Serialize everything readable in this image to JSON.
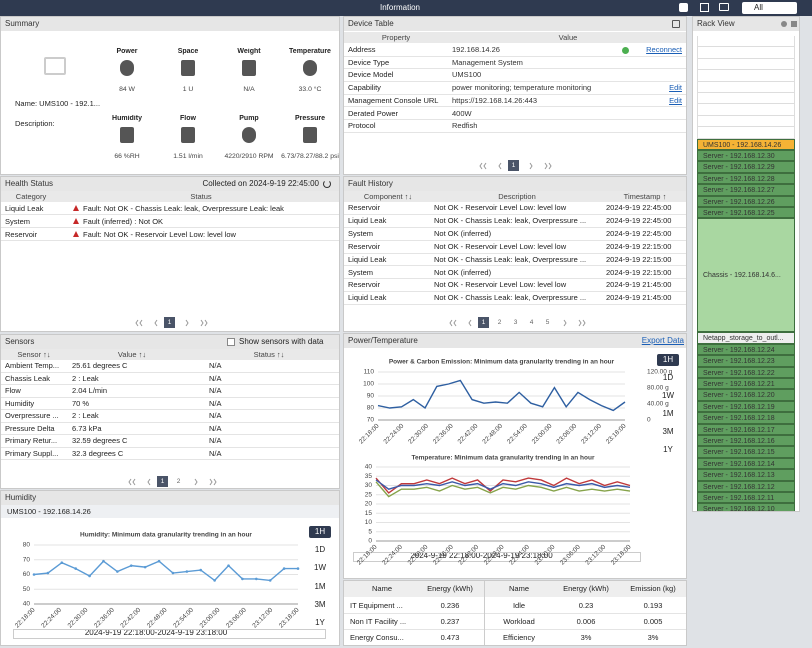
{
  "topbar": {
    "title": "Information",
    "filter": "All"
  },
  "summary": {
    "title": "Summary",
    "name": "Name: UMS100 - 192.1...",
    "description": "Description:",
    "metrics": [
      {
        "label": "Power",
        "value": "84 W"
      },
      {
        "label": "Space",
        "value": "1 U"
      },
      {
        "label": "Weight",
        "value": "N/A"
      },
      {
        "label": "Temperature",
        "value": "33.0 °C"
      },
      {
        "label": "Humidity",
        "value": "66 %RH"
      },
      {
        "label": "Flow",
        "value": "1.51 l/min"
      },
      {
        "label": "Pump",
        "value": "4220/2910 RPM"
      },
      {
        "label": "Pressure",
        "value": "6.73/78.27/88.2 psi"
      }
    ]
  },
  "device_table": {
    "title": "Device Table",
    "headers": [
      "Property",
      "Value"
    ],
    "rows": [
      [
        "Address",
        "192.168.14.26",
        "Reconnect"
      ],
      [
        "Device Type",
        "Management System"
      ],
      [
        "Device Model",
        "UMS100"
      ],
      [
        "Capability",
        "power monitoring; temperature monitoring",
        "Edit"
      ],
      [
        "Management Console URL",
        "https://192.168.14.26:443",
        "Edit"
      ],
      [
        "Derated Power",
        "400W"
      ],
      [
        "Protocol",
        "Redfish"
      ]
    ],
    "pages": [
      1
    ]
  },
  "health_status": {
    "title": "Health Status",
    "collected": "Collected on 2024-9-19 22:45:00",
    "headers": [
      "Category",
      "Status"
    ],
    "rows": [
      [
        "Liquid Leak",
        "Fault: Not OK - Chassis Leak: leak, Overpressure Leak: leak"
      ],
      [
        "System",
        "Fault (inferred) : Not OK"
      ],
      [
        "Reservoir",
        "Fault: Not OK - Reservoir Level Low: level low"
      ]
    ],
    "pages": [
      1
    ]
  },
  "fault_history": {
    "title": "Fault History",
    "headers": [
      "Component ↑↓",
      "Description",
      "Timestamp ↑"
    ],
    "rows": [
      [
        "Reservoir",
        "Not OK - Reservoir Level Low: level low",
        "2024-9-19 22:45:00"
      ],
      [
        "Liquid Leak",
        "Not OK - Chassis Leak: leak, Overpressure ...",
        "2024-9-19 22:45:00"
      ],
      [
        "System",
        "Not OK (inferred)",
        "2024-9-19 22:45:00"
      ],
      [
        "Reservoir",
        "Not OK - Reservoir Level Low: level low",
        "2024-9-19 22:15:00"
      ],
      [
        "Liquid Leak",
        "Not OK - Chassis Leak: leak, Overpressure ...",
        "2024-9-19 22:15:00"
      ],
      [
        "System",
        "Not OK (inferred)",
        "2024-9-19 22:15:00"
      ],
      [
        "Reservoir",
        "Not OK - Reservoir Level Low: level low",
        "2024-9-19 21:45:00"
      ],
      [
        "Liquid Leak",
        "Not OK - Chassis Leak: leak, Overpressure ...",
        "2024-9-19 21:45:00"
      ]
    ],
    "pages": [
      1,
      2,
      3,
      4,
      5
    ]
  },
  "sensors": {
    "title": "Sensors",
    "toggle": "Show sensors with data",
    "headers": [
      "Sensor ↑↓",
      "Value ↑↓",
      "Status ↑↓"
    ],
    "rows": [
      [
        "Ambient Temp...",
        "25.61 degrees C",
        "N/A"
      ],
      [
        "Chassis Leak",
        "2 : Leak",
        "N/A"
      ],
      [
        "Flow",
        "2.04 L/min",
        "N/A"
      ],
      [
        "Humidity",
        "70 %",
        "N/A"
      ],
      [
        "Overpressure ...",
        "2 : Leak",
        "N/A"
      ],
      [
        "Pressure Delta",
        "6.73 kPa",
        "N/A"
      ],
      [
        "Primary Retur...",
        "32.59 degrees C",
        "N/A"
      ],
      [
        "Primary Suppl...",
        "32.3 degrees C",
        "N/A"
      ]
    ],
    "pages": [
      1,
      2
    ]
  },
  "humidity": {
    "title": "Humidity",
    "device": "UMS100 - 192.168.14.26",
    "ranges": [
      "1H",
      "1D",
      "1W",
      "1M",
      "3M",
      "1Y"
    ],
    "period": "2024-9-19 22:18:00-2024-9-19 23:18:00",
    "chart_data": {
      "type": "line",
      "title": "Humidity: Minimum data granularity trending in an hour",
      "x_labels": [
        "22:18:00",
        "22:24:00",
        "22:30:00",
        "22:36:00",
        "22:42:00",
        "22:48:00",
        "22:54:00",
        "23:00:00",
        "23:06:00",
        "23:12:00",
        "23:18:00"
      ],
      "ylim": [
        40,
        80
      ],
      "yticks": [
        40,
        50,
        60,
        70,
        80
      ],
      "series": [
        {
          "color": "#5b9bd5",
          "values": [
            60,
            61,
            68,
            64,
            59,
            69,
            62,
            66,
            65,
            69,
            61,
            62,
            63,
            56,
            66,
            57,
            57,
            56,
            64,
            64
          ]
        }
      ]
    }
  },
  "power_temperature": {
    "title": "Power/Temperature",
    "export": "Export Data",
    "ranges": [
      "1H",
      "1D",
      "1W",
      "1M",
      "3M",
      "1Y"
    ],
    "period": "2024-9-19 22:18:00-2024-9-19 23:18:00",
    "chart_data": [
      {
        "type": "line",
        "title": "Power & Carbon Emission: Minimum data granularity trending in an hour",
        "x_labels": [
          "22:18:00",
          "22:24:00",
          "22:30:00",
          "22:36:00",
          "22:42:00",
          "22:48:00",
          "22:54:00",
          "23:00:00",
          "23:06:00",
          "23:12:00",
          "23:18:00"
        ],
        "ylim": [
          70,
          110
        ],
        "yticks": [
          70,
          80,
          90,
          100,
          110
        ],
        "y2lim": [
          0,
          120
        ],
        "y2ticks": [
          0,
          {
            "value": 40,
            "label": "40.00 g"
          },
          {
            "value": 80,
            "label": "80.00 g"
          },
          {
            "value": 120,
            "label": "120.00 g"
          }
        ],
        "series": [
          {
            "color": "#2e5fa1",
            "values": [
              82,
              80,
              81,
              87,
              80,
              98,
              100,
              103,
              87,
              84,
              85,
              84,
              93,
              84,
              81,
              97,
              81,
              93,
              87,
              82,
              78,
              85
            ]
          }
        ]
      },
      {
        "type": "line",
        "title": "Temperature: Minimum data granularity trending in an hour",
        "x_labels": [
          "22:18:00",
          "22:24:00",
          "22:30:00",
          "22:36:00",
          "22:42:00",
          "22:48:00",
          "22:54:00",
          "23:00:00",
          "23:06:00",
          "23:12:00",
          "23:18:00"
        ],
        "ylim": [
          0,
          40
        ],
        "yticks": [
          0,
          5,
          10,
          15,
          20,
          25,
          30,
          35,
          40
        ],
        "series": [
          {
            "color": "#c0393b",
            "values": [
              34,
              26,
              31,
              31,
              33,
              31,
              34,
              31,
              33,
              27,
              33,
              32,
              34,
              33,
              30,
              34,
              31,
              33,
              30,
              32,
              30
            ]
          },
          {
            "color": "#3c5aa8",
            "values": [
              33,
              28,
              30,
              30,
              31,
              30,
              32,
              30,
              31,
              28,
              31,
              30,
              32,
              31,
              29,
              31,
              30,
              31,
              29,
              30,
              29
            ]
          },
          {
            "color": "#86a34a",
            "values": [
              32,
              24,
              28,
              28,
              29,
              27,
              30,
              28,
              29,
              26,
              29,
              28,
              30,
              29,
              27,
              29,
              27,
              28,
              27,
              28,
              27
            ]
          }
        ]
      }
    ],
    "energy_table": {
      "headers": [
        "Name",
        "Energy (kWh)",
        "Name",
        "Energy (kWh)",
        "Emission (kg)"
      ],
      "rows": [
        [
          "IT Equipment ...",
          "0.236",
          "Idle",
          "0.23",
          "0.193"
        ],
        [
          "Non IT Facility ...",
          "0.237",
          "Workload",
          "0.006",
          "0.005"
        ],
        [
          "Energy Consu...",
          "0.473",
          "Efficiency",
          "3%",
          "3%"
        ]
      ]
    }
  },
  "rack_view": {
    "title": "Rack View",
    "items": [
      {
        "label": "UMS100 - 192.168.14.26",
        "color": "#f5b335"
      },
      {
        "label": "Server - 192.168.12.30",
        "color": "#5f9e5f"
      },
      {
        "label": "Server - 192.168.12.29",
        "color": "#5f9e5f"
      },
      {
        "label": "Server - 192.168.12.28",
        "color": "#5f9e5f"
      },
      {
        "label": "Server - 192.168.12.27",
        "color": "#5f9e5f"
      },
      {
        "label": "Server - 192.168.12.26",
        "color": "#5f9e5f"
      },
      {
        "label": "Server - 192.168.12.25",
        "color": "#5f9e5f"
      },
      {
        "label": "Chassis - 192.168.14.6...",
        "color": "#a9d7a1"
      },
      {
        "label": "Netapp_storage_to_outl...",
        "color": "#eeeeee"
      },
      {
        "label": "Server - 192.168.12.24",
        "color": "#5f9e5f"
      },
      {
        "label": "Server - 192.168.12.23",
        "color": "#5f9e5f"
      },
      {
        "label": "Server - 192.168.12.22",
        "color": "#5f9e5f"
      },
      {
        "label": "Server - 192.168.12.21",
        "color": "#5f9e5f"
      },
      {
        "label": "Server - 192.168.12.20",
        "color": "#5f9e5f"
      },
      {
        "label": "Server - 192.168.12.19",
        "color": "#5f9e5f"
      },
      {
        "label": "Server - 192.168.12.18",
        "color": "#5f9e5f"
      },
      {
        "label": "Server - 192.168.12.17",
        "color": "#5f9e5f"
      },
      {
        "label": "Server - 192.168.12.16",
        "color": "#5f9e5f"
      },
      {
        "label": "Server - 192.168.12.15",
        "color": "#5f9e5f"
      },
      {
        "label": "Server - 192.168.12.14",
        "color": "#5f9e5f"
      },
      {
        "label": "Server - 192.168.12.13",
        "color": "#5f9e5f"
      },
      {
        "label": "Server - 192.168.12.12",
        "color": "#5f9e5f"
      },
      {
        "label": "Server - 192.168.12.11",
        "color": "#5f9e5f"
      },
      {
        "label": "Server - 192.168.12.10",
        "color": "#5f9e5f"
      }
    ]
  }
}
